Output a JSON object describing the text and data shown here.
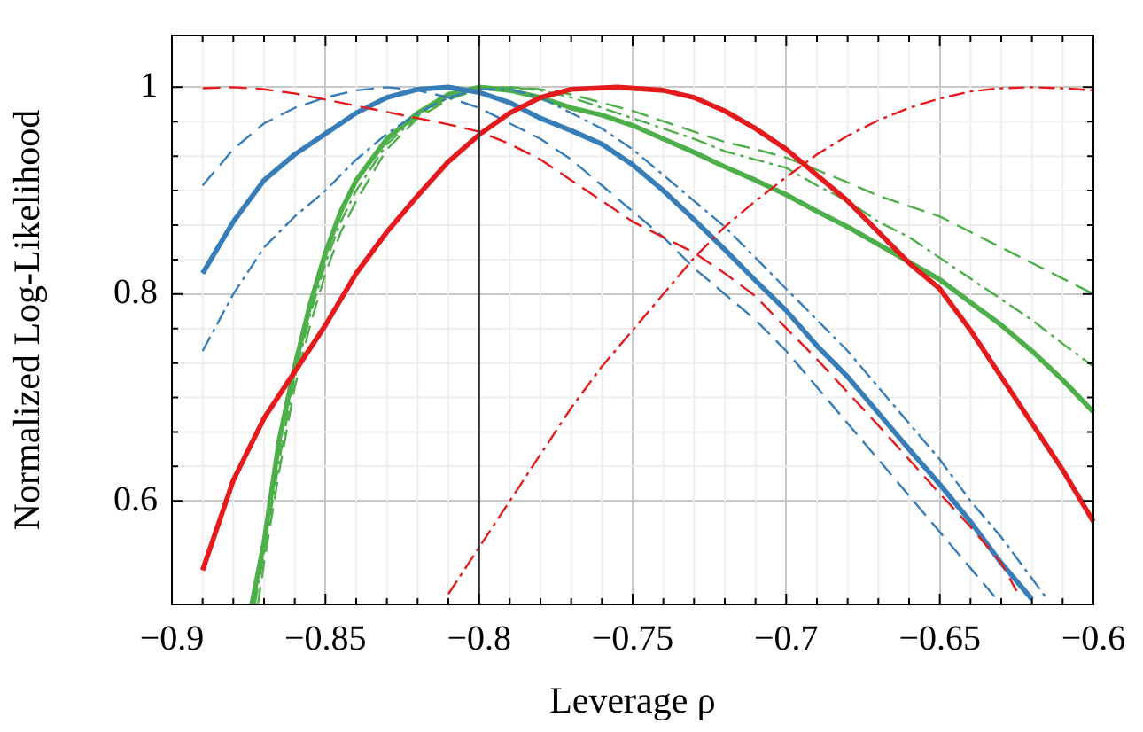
{
  "chart_data": {
    "type": "line",
    "xlabel": "Leverage ρ",
    "ylabel": "Normalized Log-Likelihood",
    "xlim": [
      -0.9,
      -0.6
    ],
    "ylim": [
      0.5,
      1.05
    ],
    "xticks": [
      {
        "value": -0.9,
        "label": "−0.9"
      },
      {
        "value": -0.85,
        "label": "−0.85"
      },
      {
        "value": -0.8,
        "label": "−0.8"
      },
      {
        "value": -0.75,
        "label": "−0.75"
      },
      {
        "value": -0.7,
        "label": "−0.7"
      },
      {
        "value": -0.65,
        "label": "−0.65"
      },
      {
        "value": -0.6,
        "label": "−0.6"
      }
    ],
    "yticks": [
      0.6,
      0.8,
      1
    ],
    "grid": true,
    "marker": "none",
    "ref_lines": [
      {
        "axis": "x",
        "value": -0.8,
        "color": "#333333"
      }
    ],
    "series": [
      {
        "color": "#e41a1c",
        "line_style": "solid",
        "x": [
          -0.89,
          -0.88,
          -0.87,
          -0.86,
          -0.85,
          -0.84,
          -0.83,
          -0.82,
          -0.81,
          -0.8,
          -0.79,
          -0.78,
          -0.77,
          -0.755,
          -0.74,
          -0.73,
          -0.72,
          -0.71,
          -0.7,
          -0.69,
          -0.68,
          -0.67,
          -0.66,
          -0.65,
          -0.64,
          -0.63,
          -0.62,
          -0.61,
          -0.6
        ],
        "values": [
          0.533,
          0.62,
          0.68,
          0.725,
          0.77,
          0.82,
          0.86,
          0.895,
          0.928,
          0.954,
          0.975,
          0.99,
          0.998,
          1.0,
          0.997,
          0.99,
          0.977,
          0.96,
          0.94,
          0.915,
          0.89,
          0.86,
          0.83,
          0.805,
          0.765,
          0.72,
          0.675,
          0.63,
          0.58
        ]
      },
      {
        "color": "#e41a1c",
        "line_style": "dashdot",
        "x": [
          -0.81,
          -0.8,
          -0.79,
          -0.78,
          -0.77,
          -0.76,
          -0.75,
          -0.74,
          -0.73,
          -0.72,
          -0.71,
          -0.7,
          -0.69,
          -0.68,
          -0.67,
          -0.66,
          -0.65,
          -0.64,
          -0.63,
          -0.62,
          -0.61,
          -0.6
        ],
        "values": [
          0.51,
          0.555,
          0.6,
          0.645,
          0.69,
          0.73,
          0.765,
          0.8,
          0.835,
          0.865,
          0.89,
          0.913,
          0.935,
          0.953,
          0.968,
          0.98,
          0.989,
          0.996,
          0.999,
          1.0,
          0.999,
          0.997
        ]
      },
      {
        "color": "#e41a1c",
        "line_style": "dashed",
        "x": [
          -0.89,
          -0.88,
          -0.87,
          -0.86,
          -0.85,
          -0.84,
          -0.83,
          -0.82,
          -0.81,
          -0.8,
          -0.79,
          -0.78,
          -0.77,
          -0.76,
          -0.75,
          -0.74,
          -0.73,
          -0.72,
          -0.71,
          -0.7,
          -0.69,
          -0.68,
          -0.67,
          -0.66,
          -0.65,
          -0.64,
          -0.63,
          -0.625
        ],
        "values": [
          0.999,
          1.0,
          0.998,
          0.994,
          0.988,
          0.982,
          0.976,
          0.97,
          0.964,
          0.957,
          0.945,
          0.93,
          0.91,
          0.89,
          0.87,
          0.855,
          0.84,
          0.82,
          0.798,
          0.767,
          0.737,
          0.705,
          0.673,
          0.64,
          0.607,
          0.575,
          0.54,
          0.513
        ]
      },
      {
        "color": "#377eb8",
        "line_style": "solid",
        "x": [
          -0.89,
          -0.88,
          -0.87,
          -0.86,
          -0.85,
          -0.84,
          -0.83,
          -0.82,
          -0.81,
          -0.8,
          -0.79,
          -0.78,
          -0.77,
          -0.76,
          -0.75,
          -0.74,
          -0.73,
          -0.72,
          -0.71,
          -0.7,
          -0.69,
          -0.68,
          -0.67,
          -0.66,
          -0.65,
          -0.64,
          -0.63,
          -0.62
        ],
        "values": [
          0.82,
          0.87,
          0.91,
          0.935,
          0.955,
          0.975,
          0.99,
          0.998,
          1.0,
          0.995,
          0.985,
          0.97,
          0.958,
          0.945,
          0.925,
          0.9,
          0.872,
          0.843,
          0.813,
          0.784,
          0.75,
          0.72,
          0.685,
          0.65,
          0.616,
          0.58,
          0.54,
          0.505
        ]
      },
      {
        "color": "#377eb8",
        "line_style": "dashdot",
        "x": [
          -0.89,
          -0.88,
          -0.87,
          -0.86,
          -0.85,
          -0.84,
          -0.83,
          -0.82,
          -0.81,
          -0.8,
          -0.79,
          -0.78,
          -0.77,
          -0.76,
          -0.75,
          -0.74,
          -0.73,
          -0.72,
          -0.71,
          -0.7,
          -0.69,
          -0.68,
          -0.67,
          -0.66,
          -0.65,
          -0.64,
          -0.63,
          -0.62,
          -0.615
        ],
        "values": [
          0.745,
          0.8,
          0.845,
          0.875,
          0.9,
          0.93,
          0.955,
          0.975,
          0.99,
          0.998,
          0.998,
          0.99,
          0.975,
          0.96,
          0.94,
          0.915,
          0.89,
          0.865,
          0.835,
          0.805,
          0.775,
          0.745,
          0.71,
          0.675,
          0.64,
          0.6,
          0.565,
          0.525,
          0.505
        ]
      },
      {
        "color": "#377eb8",
        "line_style": "dashed",
        "x": [
          -0.89,
          -0.88,
          -0.87,
          -0.86,
          -0.85,
          -0.84,
          -0.83,
          -0.82,
          -0.81,
          -0.8,
          -0.79,
          -0.78,
          -0.77,
          -0.76,
          -0.75,
          -0.74,
          -0.73,
          -0.72,
          -0.71,
          -0.7,
          -0.69,
          -0.68,
          -0.67,
          -0.66,
          -0.65,
          -0.64,
          -0.63
        ],
        "values": [
          0.905,
          0.94,
          0.965,
          0.98,
          0.99,
          0.997,
          1.0,
          0.997,
          0.99,
          0.98,
          0.965,
          0.95,
          0.93,
          0.905,
          0.88,
          0.855,
          0.825,
          0.8,
          0.775,
          0.745,
          0.71,
          0.675,
          0.64,
          0.605,
          0.57,
          0.535,
          0.5
        ]
      },
      {
        "color": "#4daf4a",
        "line_style": "solid",
        "x": [
          -0.874,
          -0.87,
          -0.865,
          -0.86,
          -0.855,
          -0.85,
          -0.845,
          -0.84,
          -0.83,
          -0.82,
          -0.81,
          -0.8,
          -0.79,
          -0.78,
          -0.77,
          -0.76,
          -0.75,
          -0.74,
          -0.73,
          -0.72,
          -0.71,
          -0.7,
          -0.69,
          -0.68,
          -0.67,
          -0.66,
          -0.65,
          -0.64,
          -0.63,
          -0.62,
          -0.61,
          -0.6
        ],
        "values": [
          0.5,
          0.56,
          0.66,
          0.73,
          0.79,
          0.84,
          0.88,
          0.91,
          0.95,
          0.975,
          0.993,
          1.0,
          0.997,
          0.99,
          0.98,
          0.973,
          0.963,
          0.95,
          0.937,
          0.923,
          0.91,
          0.896,
          0.88,
          0.865,
          0.848,
          0.831,
          0.814,
          0.792,
          0.77,
          0.745,
          0.717,
          0.686
        ]
      },
      {
        "color": "#4daf4a",
        "line_style": "dashdot",
        "x": [
          -0.873,
          -0.87,
          -0.865,
          -0.86,
          -0.855,
          -0.85,
          -0.845,
          -0.84,
          -0.83,
          -0.82,
          -0.81,
          -0.8,
          -0.79,
          -0.78,
          -0.77,
          -0.76,
          -0.75,
          -0.74,
          -0.73,
          -0.72,
          -0.71,
          -0.7,
          -0.69,
          -0.68,
          -0.67,
          -0.66,
          -0.65,
          -0.64,
          -0.63,
          -0.62,
          -0.61,
          -0.6
        ],
        "values": [
          0.5,
          0.55,
          0.64,
          0.72,
          0.78,
          0.83,
          0.87,
          0.9,
          0.945,
          0.972,
          0.99,
          0.999,
          1.0,
          0.997,
          0.99,
          0.98,
          0.97,
          0.96,
          0.95,
          0.938,
          0.93,
          0.922,
          0.905,
          0.89,
          0.87,
          0.855,
          0.835,
          0.815,
          0.795,
          0.775,
          0.752,
          0.73
        ]
      },
      {
        "color": "#4daf4a",
        "line_style": "dashed",
        "x": [
          -0.872,
          -0.87,
          -0.865,
          -0.86,
          -0.855,
          -0.85,
          -0.845,
          -0.84,
          -0.83,
          -0.82,
          -0.81,
          -0.8,
          -0.79,
          -0.78,
          -0.77,
          -0.76,
          -0.75,
          -0.74,
          -0.73,
          -0.72,
          -0.71,
          -0.7,
          -0.69,
          -0.68,
          -0.67,
          -0.66,
          -0.65,
          -0.64,
          -0.63,
          -0.62,
          -0.61,
          -0.6
        ],
        "values": [
          0.5,
          0.54,
          0.63,
          0.71,
          0.77,
          0.82,
          0.86,
          0.89,
          0.94,
          0.97,
          0.988,
          0.998,
          1.0,
          0.998,
          0.993,
          0.985,
          0.977,
          0.967,
          0.957,
          0.947,
          0.94,
          0.932,
          0.92,
          0.908,
          0.895,
          0.885,
          0.875,
          0.86,
          0.845,
          0.83,
          0.815,
          0.8
        ]
      }
    ]
  }
}
